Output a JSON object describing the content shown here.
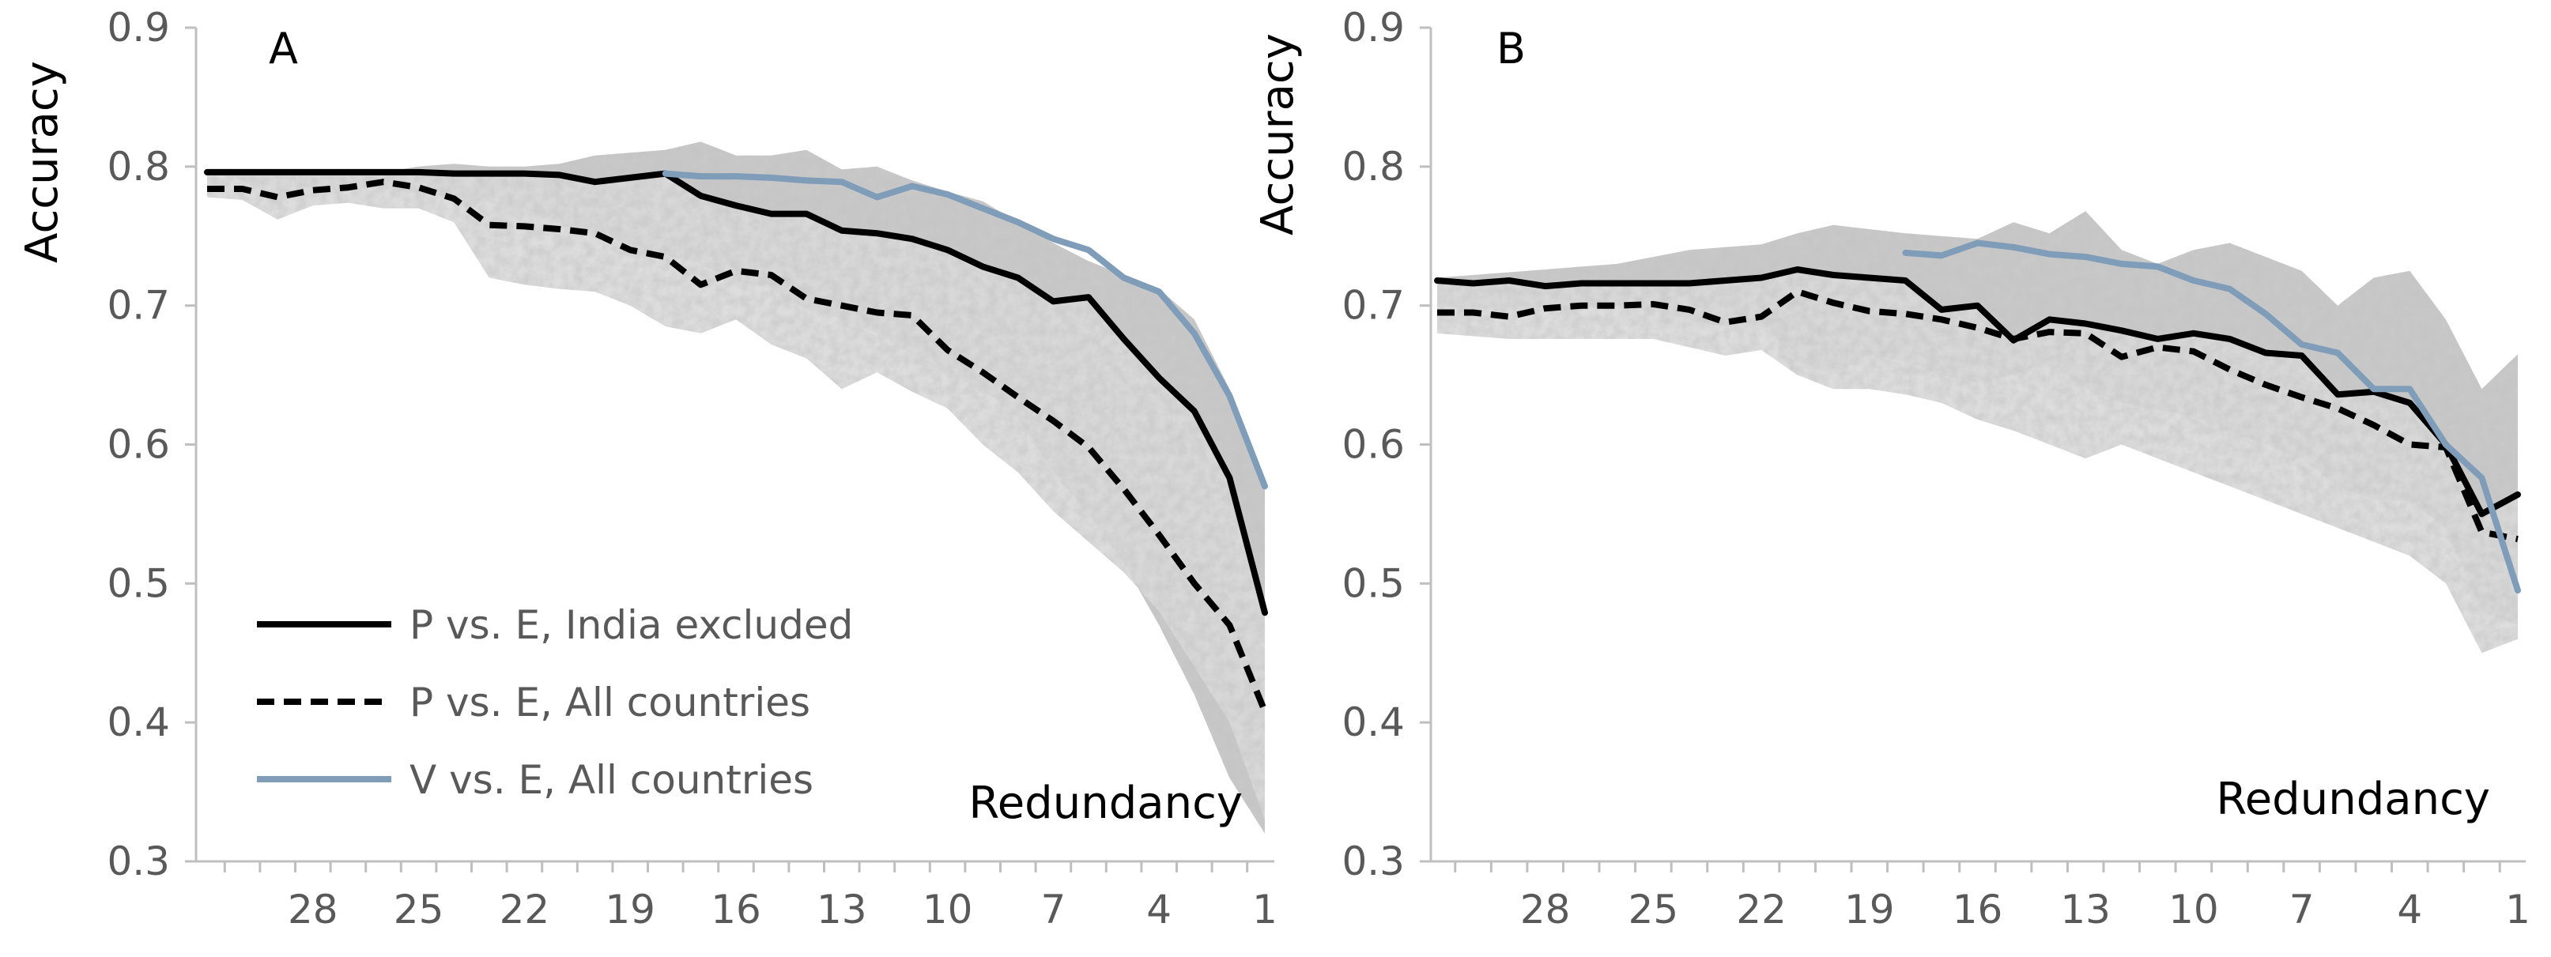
{
  "colors": {
    "band_dark": "#a8a8a8",
    "band_light": "#d9d9d9",
    "band_gray": "#c8c8c8",
    "black": "#000000",
    "blue": "#7f9db9",
    "axis": "#bfbfbf",
    "tick_text": "#595959"
  },
  "legend": {
    "items": [
      {
        "label": "P vs. E, India excluded",
        "style": "solid",
        "color": "#000000"
      },
      {
        "label": "P vs. E, All countries",
        "style": "dashed",
        "color": "#000000"
      },
      {
        "label": "V vs. E, All countries",
        "style": "solid",
        "color": "#7f9db9"
      }
    ]
  },
  "chart_data": [
    {
      "type": "line",
      "panel_label": "A",
      "ylabel": "Accuracy",
      "xlabel": "Redundancy",
      "ylim": [
        0.3,
        0.9
      ],
      "y_ticks": [
        "0.3",
        "0.4",
        "0.5",
        "0.6",
        "0.7",
        "0.8",
        "0.9"
      ],
      "x_range": [
        31,
        1
      ],
      "x_ticks": [
        "28",
        "25",
        "22",
        "19",
        "16",
        "13",
        "10",
        "7",
        "4",
        "1"
      ],
      "legend_position": "bottom-left",
      "x": [
        31,
        30,
        29,
        28,
        27,
        26,
        25,
        24,
        23,
        22,
        21,
        20,
        19,
        18,
        17,
        16,
        15,
        14,
        13,
        12,
        11,
        10,
        9,
        8,
        7,
        6,
        5,
        4,
        3,
        2,
        1
      ],
      "series": [
        {
          "name": "P vs. E, India excluded",
          "style": "solid",
          "color": "#000000",
          "values": [
            0.796,
            0.796,
            0.796,
            0.796,
            0.796,
            0.796,
            0.796,
            0.795,
            0.795,
            0.795,
            0.794,
            0.789,
            0.792,
            0.795,
            0.779,
            0.772,
            0.766,
            0.766,
            0.754,
            0.752,
            0.748,
            0.74,
            0.728,
            0.72,
            0.703,
            0.706,
            0.676,
            0.648,
            0.624,
            0.576,
            0.479
          ]
        },
        {
          "name": "P vs. E, All countries",
          "style": "dashed",
          "color": "#000000",
          "values": [
            0.784,
            0.784,
            0.778,
            0.783,
            0.785,
            0.789,
            0.785,
            0.777,
            0.758,
            0.757,
            0.755,
            0.752,
            0.74,
            0.735,
            0.715,
            0.725,
            0.722,
            0.705,
            0.7,
            0.695,
            0.693,
            0.668,
            0.652,
            0.634,
            0.617,
            0.598,
            0.568,
            0.535,
            0.5,
            0.47,
            0.408
          ]
        },
        {
          "name": "V vs. E, All countries",
          "style": "solid",
          "color": "#7f9db9",
          "x": [
            18,
            17,
            16,
            15,
            14,
            13,
            12,
            11,
            10,
            9,
            8,
            7,
            6,
            5,
            4,
            3,
            2,
            1
          ],
          "values": [
            0.795,
            0.793,
            0.793,
            0.792,
            0.79,
            0.789,
            0.778,
            0.786,
            0.78,
            0.77,
            0.76,
            0.748,
            0.74,
            0.72,
            0.71,
            0.68,
            0.635,
            0.57
          ]
        }
      ],
      "band_dark": {
        "upper": [
          0.796,
          0.796,
          0.796,
          0.796,
          0.796,
          0.796,
          0.8,
          0.802,
          0.8,
          0.8,
          0.802,
          0.808,
          0.81,
          0.812,
          0.818,
          0.808,
          0.808,
          0.812,
          0.798,
          0.8,
          0.79,
          0.782,
          0.775,
          0.76,
          0.745,
          0.732,
          0.722,
          0.712,
          0.69,
          0.64,
          0.57
        ],
        "lower": [
          0.796,
          0.79,
          0.785,
          0.786,
          0.785,
          0.784,
          0.781,
          0.777,
          0.774,
          0.769,
          0.758,
          0.752,
          0.744,
          0.736,
          0.73,
          0.718,
          0.712,
          0.698,
          0.69,
          0.68,
          0.665,
          0.65,
          0.64,
          0.62,
          0.58,
          0.55,
          0.515,
          0.47,
          0.42,
          0.36,
          0.32
        ]
      },
      "band_light": {
        "upper": [
          0.796,
          0.796,
          0.796,
          0.796,
          0.796,
          0.796,
          0.796,
          0.795,
          0.795,
          0.795,
          0.794,
          0.789,
          0.792,
          0.795,
          0.779,
          0.772,
          0.766,
          0.766,
          0.754,
          0.752,
          0.748,
          0.74,
          0.728,
          0.72,
          0.703,
          0.706,
          0.676,
          0.648,
          0.624,
          0.576,
          0.479
        ],
        "lower": [
          0.778,
          0.776,
          0.762,
          0.772,
          0.774,
          0.77,
          0.77,
          0.76,
          0.72,
          0.715,
          0.712,
          0.71,
          0.7,
          0.685,
          0.68,
          0.69,
          0.672,
          0.662,
          0.64,
          0.652,
          0.638,
          0.626,
          0.6,
          0.58,
          0.552,
          0.53,
          0.508,
          0.48,
          0.44,
          0.4,
          0.33
        ]
      }
    },
    {
      "type": "line",
      "panel_label": "B",
      "ylabel": "Accuracy",
      "xlabel": "Redundancy",
      "ylim": [
        0.3,
        0.9
      ],
      "y_ticks": [
        "0.3",
        "0.4",
        "0.5",
        "0.6",
        "0.7",
        "0.8",
        "0.9"
      ],
      "x_range": [
        31,
        1
      ],
      "x_ticks": [
        "28",
        "25",
        "22",
        "19",
        "16",
        "13",
        "10",
        "7",
        "4",
        "1"
      ],
      "x": [
        31,
        30,
        29,
        28,
        27,
        26,
        25,
        24,
        23,
        22,
        21,
        20,
        19,
        18,
        17,
        16,
        15,
        14,
        13,
        12,
        11,
        10,
        9,
        8,
        7,
        6,
        5,
        4,
        3,
        2,
        1
      ],
      "series": [
        {
          "name": "P vs. E, India excluded",
          "style": "solid",
          "color": "#000000",
          "values": [
            0.718,
            0.716,
            0.718,
            0.714,
            0.716,
            0.716,
            0.716,
            0.716,
            0.718,
            0.72,
            0.726,
            0.722,
            0.72,
            0.718,
            0.697,
            0.7,
            0.675,
            0.69,
            0.687,
            0.682,
            0.676,
            0.68,
            0.676,
            0.666,
            0.664,
            0.636,
            0.638,
            0.63,
            0.6,
            0.55,
            0.564
          ]
        },
        {
          "name": "P vs. E, All countries",
          "style": "dashed",
          "color": "#000000",
          "values": [
            0.695,
            0.695,
            0.692,
            0.698,
            0.7,
            0.7,
            0.701,
            0.697,
            0.688,
            0.692,
            0.71,
            0.702,
            0.696,
            0.694,
            0.69,
            0.684,
            0.676,
            0.681,
            0.68,
            0.663,
            0.67,
            0.667,
            0.654,
            0.643,
            0.634,
            0.626,
            0.614,
            0.6,
            0.598,
            0.537,
            0.532
          ]
        },
        {
          "name": "V vs. E, All countries",
          "style": "solid",
          "color": "#7f9db9",
          "x": [
            18,
            17,
            16,
            15,
            14,
            13,
            12,
            11,
            10,
            9,
            8,
            7,
            6,
            5,
            4,
            3,
            2,
            1
          ],
          "values": [
            0.738,
            0.736,
            0.745,
            0.742,
            0.737,
            0.735,
            0.73,
            0.728,
            0.718,
            0.712,
            0.694,
            0.672,
            0.666,
            0.64,
            0.64,
            0.6,
            0.576,
            0.495
          ]
        }
      ],
      "band_dark": {
        "upper": [
          0.72,
          0.722,
          0.724,
          0.726,
          0.728,
          0.73,
          0.735,
          0.74,
          0.742,
          0.744,
          0.752,
          0.758,
          0.755,
          0.752,
          0.75,
          0.748,
          0.76,
          0.752,
          0.768,
          0.74,
          0.73,
          0.74,
          0.745,
          0.735,
          0.725,
          0.7,
          0.72,
          0.725,
          0.69,
          0.64,
          0.665
        ],
        "lower": [
          0.7,
          0.698,
          0.696,
          0.696,
          0.698,
          0.7,
          0.696,
          0.69,
          0.685,
          0.688,
          0.66,
          0.65,
          0.665,
          0.66,
          0.65,
          0.645,
          0.65,
          0.66,
          0.64,
          0.63,
          0.625,
          0.62,
          0.61,
          0.6,
          0.59,
          0.57,
          0.56,
          0.56,
          0.54,
          0.48,
          0.47
        ]
      },
      "band_light": {
        "upper": [
          0.718,
          0.716,
          0.718,
          0.714,
          0.716,
          0.716,
          0.716,
          0.716,
          0.718,
          0.72,
          0.726,
          0.722,
          0.72,
          0.718,
          0.697,
          0.7,
          0.675,
          0.69,
          0.687,
          0.682,
          0.676,
          0.68,
          0.676,
          0.666,
          0.664,
          0.636,
          0.638,
          0.63,
          0.6,
          0.55,
          0.564
        ],
        "lower": [
          0.68,
          0.678,
          0.676,
          0.676,
          0.676,
          0.676,
          0.676,
          0.67,
          0.664,
          0.668,
          0.65,
          0.64,
          0.64,
          0.636,
          0.63,
          0.618,
          0.61,
          0.6,
          0.59,
          0.6,
          0.59,
          0.58,
          0.57,
          0.56,
          0.55,
          0.54,
          0.53,
          0.52,
          0.5,
          0.45,
          0.46
        ]
      }
    }
  ]
}
